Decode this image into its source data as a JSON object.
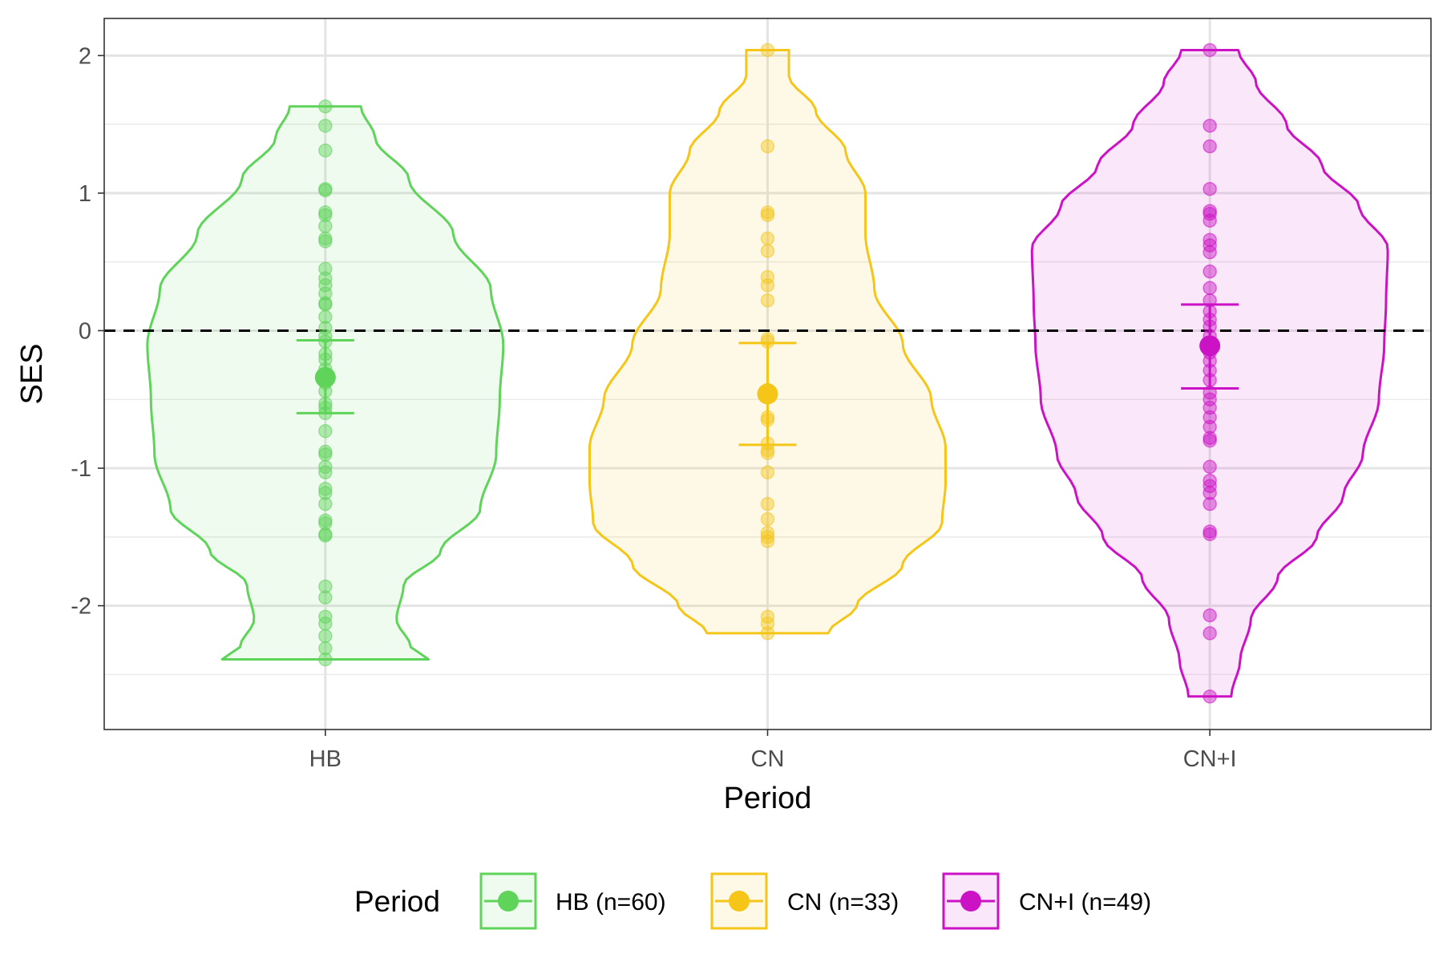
{
  "chart_data": {
    "type": "violin",
    "xlabel": "Period",
    "ylabel": "SES",
    "ylim": [
      -2.9,
      2.27
    ],
    "yticks": [
      -2,
      -1,
      0,
      1,
      2
    ],
    "reference_line": {
      "y": 0,
      "style": "dashed",
      "color": "#000000"
    },
    "grid": true,
    "legend": {
      "title": "Period",
      "position": "bottom",
      "entries": [
        "HB (n=60)",
        "CN (n=33)",
        "CN+I (n=49)"
      ]
    },
    "categories": [
      "HB",
      "CN",
      "CN+I"
    ],
    "series": [
      {
        "name": "HB (n=60)",
        "category": "HB",
        "color": "#5fd35a",
        "mean": -0.34,
        "error_upper": -0.07,
        "error_lower": -0.6,
        "range": [
          -2.39,
          1.63
        ],
        "density_profile": [
          [
            -2.39,
            0.58
          ],
          [
            -2.3,
            0.48
          ],
          [
            -2.1,
            0.4
          ],
          [
            -1.85,
            0.44
          ],
          [
            -1.6,
            0.65
          ],
          [
            -1.3,
            0.87
          ],
          [
            -0.9,
            0.96
          ],
          [
            -0.5,
            0.98
          ],
          [
            -0.1,
            1.0
          ],
          [
            0.3,
            0.93
          ],
          [
            0.7,
            0.72
          ],
          [
            1.1,
            0.47
          ],
          [
            1.4,
            0.28
          ],
          [
            1.63,
            0.2
          ]
        ],
        "points": [
          1.63,
          1.49,
          1.31,
          1.03,
          1.02,
          0.86,
          0.84,
          0.76,
          0.67,
          0.65,
          0.45,
          0.38,
          0.33,
          0.27,
          0.2,
          0.19,
          0.1,
          0.02,
          -0.04,
          -0.08,
          -0.17,
          -0.21,
          -0.28,
          -0.38,
          -0.44,
          -0.53,
          -0.56,
          -0.6,
          -0.73,
          -0.88,
          -0.9,
          -0.99,
          -1.03,
          -1.15,
          -1.18,
          -1.26,
          -1.38,
          -1.4,
          -1.48,
          -1.49,
          -1.86,
          -1.94,
          -2.08,
          -2.13,
          -2.22,
          -2.31,
          -2.39
        ]
      },
      {
        "name": "CN (n=33)",
        "category": "CN",
        "color": "#f5c518",
        "mean": -0.46,
        "error_upper": -0.09,
        "error_lower": -0.83,
        "range": [
          -2.2,
          2.04
        ],
        "density_profile": [
          [
            -2.2,
            0.34
          ],
          [
            -2.0,
            0.5
          ],
          [
            -1.7,
            0.76
          ],
          [
            -1.4,
            0.98
          ],
          [
            -1.1,
            1.0
          ],
          [
            -0.85,
            1.0
          ],
          [
            -0.5,
            0.92
          ],
          [
            -0.1,
            0.76
          ],
          [
            0.3,
            0.6
          ],
          [
            0.7,
            0.55
          ],
          [
            1.0,
            0.55
          ],
          [
            1.3,
            0.44
          ],
          [
            1.6,
            0.27
          ],
          [
            1.85,
            0.12
          ],
          [
            2.04,
            0.12
          ]
        ],
        "points": [
          2.04,
          1.34,
          0.86,
          0.84,
          0.67,
          0.58,
          0.39,
          0.33,
          0.22,
          -0.06,
          -0.08,
          -0.43,
          -0.46,
          -0.63,
          -0.65,
          -0.82,
          -0.87,
          -0.89,
          -1.03,
          -1.26,
          -1.37,
          -1.47,
          -1.5,
          -1.53,
          -2.08,
          -2.13,
          -2.2
        ]
      },
      {
        "name": "CN+I (n=49)",
        "category": "CN+I",
        "color": "#cc12c5",
        "mean": -0.11,
        "error_upper": 0.19,
        "error_lower": -0.42,
        "range": [
          -2.66,
          2.04
        ],
        "density_profile": [
          [
            -2.66,
            0.12
          ],
          [
            -2.4,
            0.17
          ],
          [
            -2.1,
            0.23
          ],
          [
            -1.8,
            0.38
          ],
          [
            -1.5,
            0.6
          ],
          [
            -1.2,
            0.75
          ],
          [
            -0.9,
            0.86
          ],
          [
            -0.5,
            0.95
          ],
          [
            -0.1,
            0.98
          ],
          [
            0.2,
            0.99
          ],
          [
            0.6,
            1.0
          ],
          [
            0.9,
            0.84
          ],
          [
            1.2,
            0.63
          ],
          [
            1.5,
            0.43
          ],
          [
            1.8,
            0.26
          ],
          [
            2.04,
            0.16
          ]
        ],
        "points": [
          2.04,
          1.49,
          1.34,
          1.03,
          0.87,
          0.85,
          0.8,
          0.66,
          0.62,
          0.57,
          0.43,
          0.31,
          0.22,
          0.14,
          0.08,
          0.03,
          -0.04,
          -0.11,
          -0.16,
          -0.22,
          -0.29,
          -0.36,
          -0.45,
          -0.5,
          -0.56,
          -0.63,
          -0.7,
          -0.78,
          -0.8,
          -0.99,
          -1.09,
          -1.13,
          -1.18,
          -1.26,
          -1.46,
          -1.48,
          -2.07,
          -2.2,
          -2.66
        ]
      }
    ]
  }
}
